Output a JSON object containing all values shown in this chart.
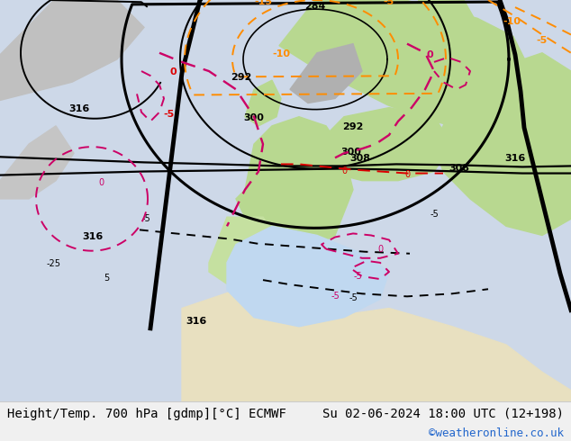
{
  "title_left": "Height/Temp. 700 hPa [gdmp][°C] ECMWF",
  "title_right": "Su 02-06-2024 18:00 UTC (12+198)",
  "watermark": "©weatheronline.co.uk",
  "font_size_title": 10,
  "font_size_watermark": 9
}
